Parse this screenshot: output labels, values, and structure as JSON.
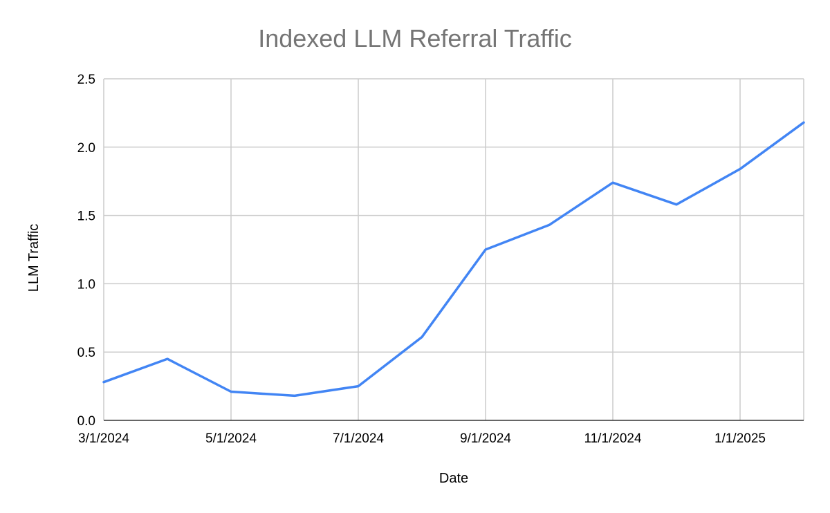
{
  "chart_data": {
    "type": "line",
    "title": "Indexed LLM Referral Traffic",
    "xlabel": "Date",
    "ylabel": "LLM Traffic",
    "x": [
      "3/1/2024",
      "4/1/2024",
      "5/1/2024",
      "6/1/2024",
      "7/1/2024",
      "8/1/2024",
      "9/1/2024",
      "10/1/2024",
      "11/1/2024",
      "12/1/2024",
      "1/1/2025",
      "2/1/2025"
    ],
    "x_tick_labels": [
      "3/1/2024",
      "5/1/2024",
      "7/1/2024",
      "9/1/2024",
      "11/1/2024",
      "1/1/2025"
    ],
    "y_tick_labels": [
      "0.0",
      "0.5",
      "1.0",
      "1.5",
      "2.0",
      "2.5"
    ],
    "ylim": [
      0,
      2.5
    ],
    "grid": true,
    "legend": "none",
    "series": [
      {
        "color": "#4285f4",
        "values": [
          0.28,
          0.45,
          0.21,
          0.18,
          0.25,
          0.61,
          1.25,
          1.43,
          1.74,
          1.58,
          1.84,
          2.18
        ]
      }
    ]
  }
}
